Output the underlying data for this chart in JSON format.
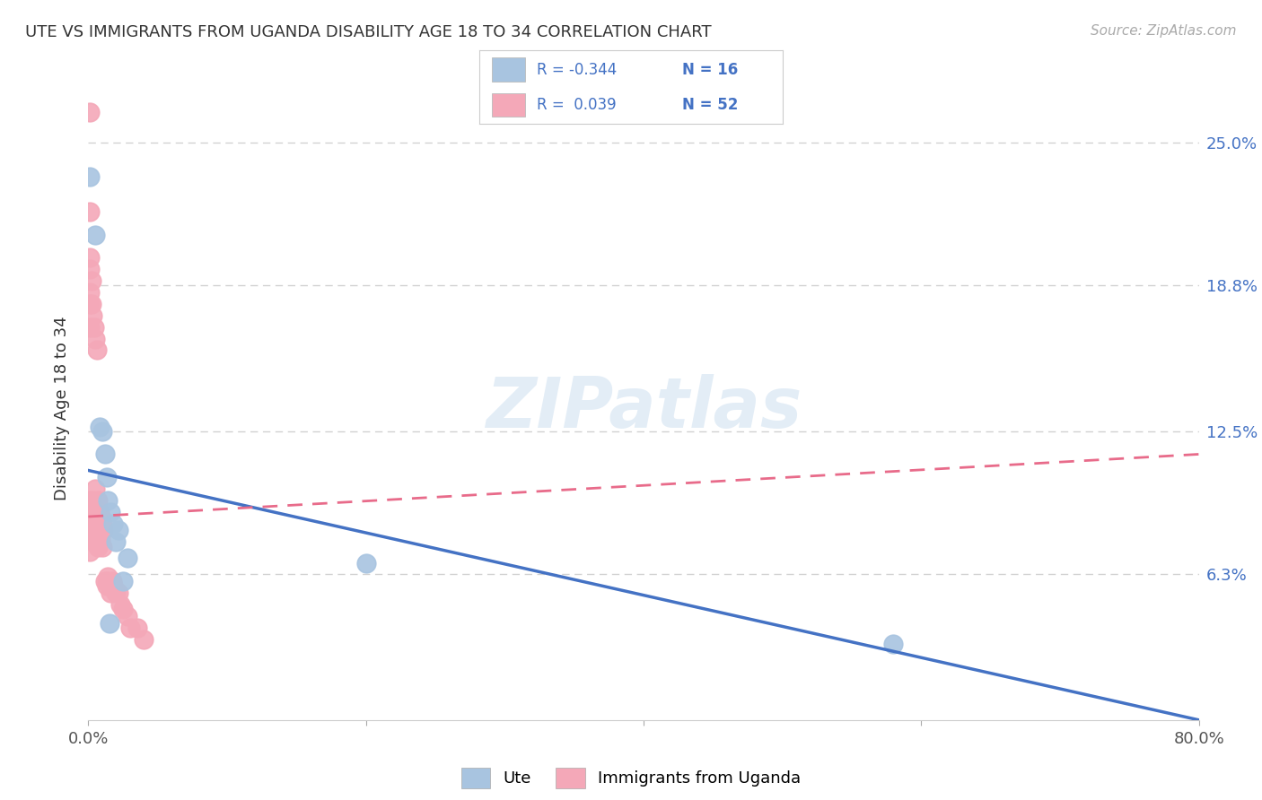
{
  "title": "UTE VS IMMIGRANTS FROM UGANDA DISABILITY AGE 18 TO 34 CORRELATION CHART",
  "source": "Source: ZipAtlas.com",
  "ylabel": "Disability Age 18 to 34",
  "ytick_labels": [
    "25.0%",
    "18.8%",
    "12.5%",
    "6.3%"
  ],
  "ytick_values": [
    0.25,
    0.188,
    0.125,
    0.063
  ],
  "xlim": [
    0.0,
    0.8
  ],
  "ylim": [
    0.0,
    0.27
  ],
  "watermark": "ZIPatlas",
  "blue_scatter_x": [
    0.001,
    0.005,
    0.008,
    0.01,
    0.012,
    0.013,
    0.014,
    0.016,
    0.018,
    0.02,
    0.022,
    0.025,
    0.028,
    0.015,
    0.2,
    0.58
  ],
  "blue_scatter_y": [
    0.235,
    0.21,
    0.127,
    0.125,
    0.115,
    0.105,
    0.095,
    0.09,
    0.085,
    0.077,
    0.082,
    0.06,
    0.07,
    0.042,
    0.068,
    0.033
  ],
  "pink_scatter_x": [
    0.001,
    0.001,
    0.001,
    0.001,
    0.001,
    0.001,
    0.001,
    0.001,
    0.001,
    0.001,
    0.001,
    0.001,
    0.001,
    0.001,
    0.002,
    0.002,
    0.002,
    0.003,
    0.003,
    0.004,
    0.004,
    0.005,
    0.005,
    0.005,
    0.006,
    0.006,
    0.007,
    0.007,
    0.007,
    0.008,
    0.008,
    0.009,
    0.009,
    0.01,
    0.01,
    0.011,
    0.012,
    0.013,
    0.013,
    0.014,
    0.016,
    0.017,
    0.018,
    0.02,
    0.022,
    0.023,
    0.025,
    0.028,
    0.03,
    0.035,
    0.04,
    0.001
  ],
  "pink_scatter_y": [
    0.263,
    0.22,
    0.2,
    0.195,
    0.185,
    0.18,
    0.17,
    0.095,
    0.092,
    0.088,
    0.085,
    0.082,
    0.08,
    0.078,
    0.19,
    0.18,
    0.09,
    0.175,
    0.095,
    0.17,
    0.092,
    0.165,
    0.1,
    0.09,
    0.16,
    0.088,
    0.095,
    0.085,
    0.075,
    0.09,
    0.082,
    0.088,
    0.078,
    0.085,
    0.075,
    0.082,
    0.06,
    0.06,
    0.058,
    0.062,
    0.055,
    0.06,
    0.058,
    0.055,
    0.055,
    0.05,
    0.048,
    0.045,
    0.04,
    0.04,
    0.035,
    0.073
  ],
  "blue_color": "#a8c4e0",
  "pink_color": "#f4a8b8",
  "blue_line_color": "#4472c4",
  "pink_line_color": "#e86b8a",
  "trendline_blue_x0": 0.0,
  "trendline_blue_y0": 0.108,
  "trendline_blue_x1": 0.8,
  "trendline_blue_y1": 0.0,
  "trendline_pink_x0": 0.0,
  "trendline_pink_y0": 0.088,
  "trendline_pink_x1": 0.8,
  "trendline_pink_y1": 0.115,
  "bg_color": "#ffffff",
  "grid_color": "#cccccc"
}
